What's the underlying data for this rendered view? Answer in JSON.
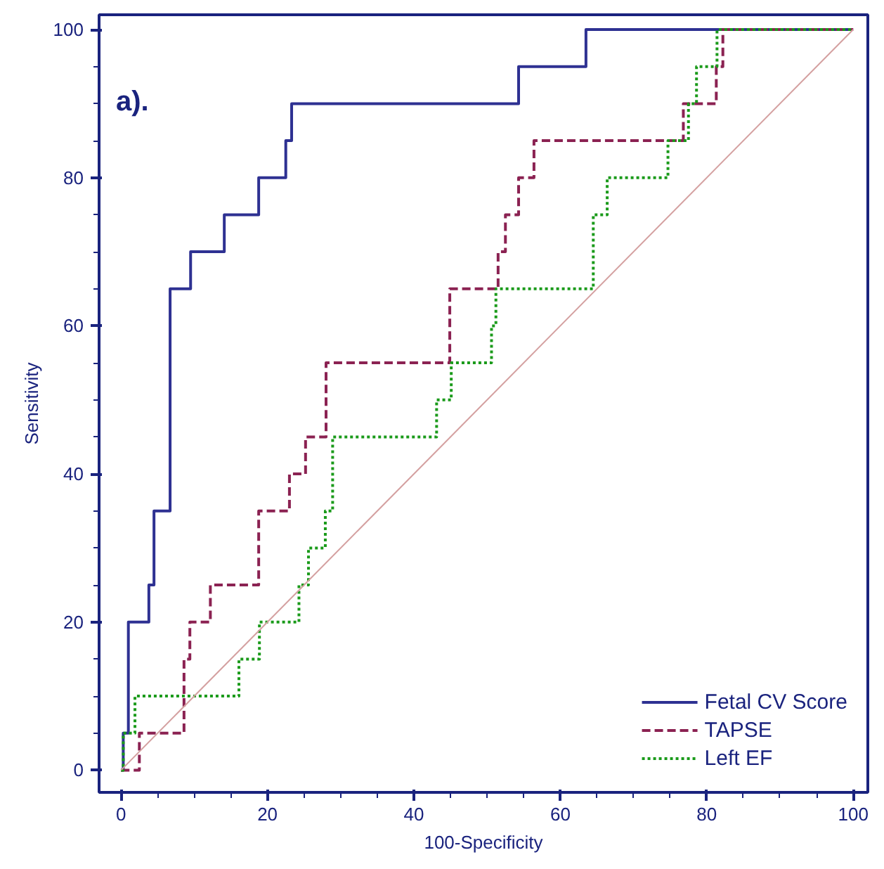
{
  "chart_data": {
    "type": "step",
    "xlabel": "100-Specificity",
    "ylabel": "Sensitivity",
    "annotations": [
      "a)."
    ],
    "xlim": [
      -3,
      102
    ],
    "ylim": [
      -3,
      102
    ],
    "xticks": [
      0,
      20,
      40,
      60,
      80,
      100
    ],
    "yticks": [
      0,
      20,
      40,
      60,
      80,
      100
    ],
    "grid": false,
    "legend": "bottom right",
    "series": [
      {
        "name": "Fetal CV Score",
        "color": "#2e3192",
        "line_style": "solid",
        "x": [
          0,
          0.3,
          1,
          3.8,
          4.5,
          6.7,
          9.5,
          14.1,
          18.8,
          22.5,
          23.3,
          54.3,
          63.5,
          100
        ],
        "values": [
          0,
          5,
          20,
          25,
          35,
          65,
          70,
          75,
          80,
          85,
          90,
          95,
          100,
          100
        ]
      },
      {
        "name": "TAPSE",
        "color": "#8b2252",
        "line_style": "dashed",
        "x": [
          0,
          2.5,
          8.6,
          9.4,
          12.2,
          18.8,
          23,
          25.2,
          28,
          44.9,
          51.5,
          52.5,
          53.8,
          54.3,
          56.4,
          76.8,
          81.3,
          82.2,
          100
        ],
        "values": [
          0,
          5,
          15,
          20,
          25,
          35,
          40,
          45,
          55,
          65,
          70,
          75,
          75,
          80,
          85,
          90,
          95,
          100,
          100
        ]
      },
      {
        "name": "Left EF",
        "color": "#1a9a1a",
        "line_style": "dotted",
        "x": [
          0,
          0.3,
          1.9,
          16.1,
          18.9,
          24.3,
          25.6,
          27.9,
          28.9,
          43.1,
          45.1,
          50.6,
          51.2,
          64.5,
          66.4,
          74.7,
          77.5,
          78.6,
          81.4,
          100
        ],
        "values": [
          0,
          5,
          10,
          15,
          20,
          25,
          30,
          35,
          45,
          50,
          55,
          60,
          65,
          75,
          80,
          85,
          90,
          95,
          100,
          100
        ]
      },
      {
        "type": "line",
        "color": "#d4a0a0",
        "line_style": "solid",
        "x": [
          0,
          100
        ],
        "values": [
          0,
          100
        ]
      }
    ]
  }
}
